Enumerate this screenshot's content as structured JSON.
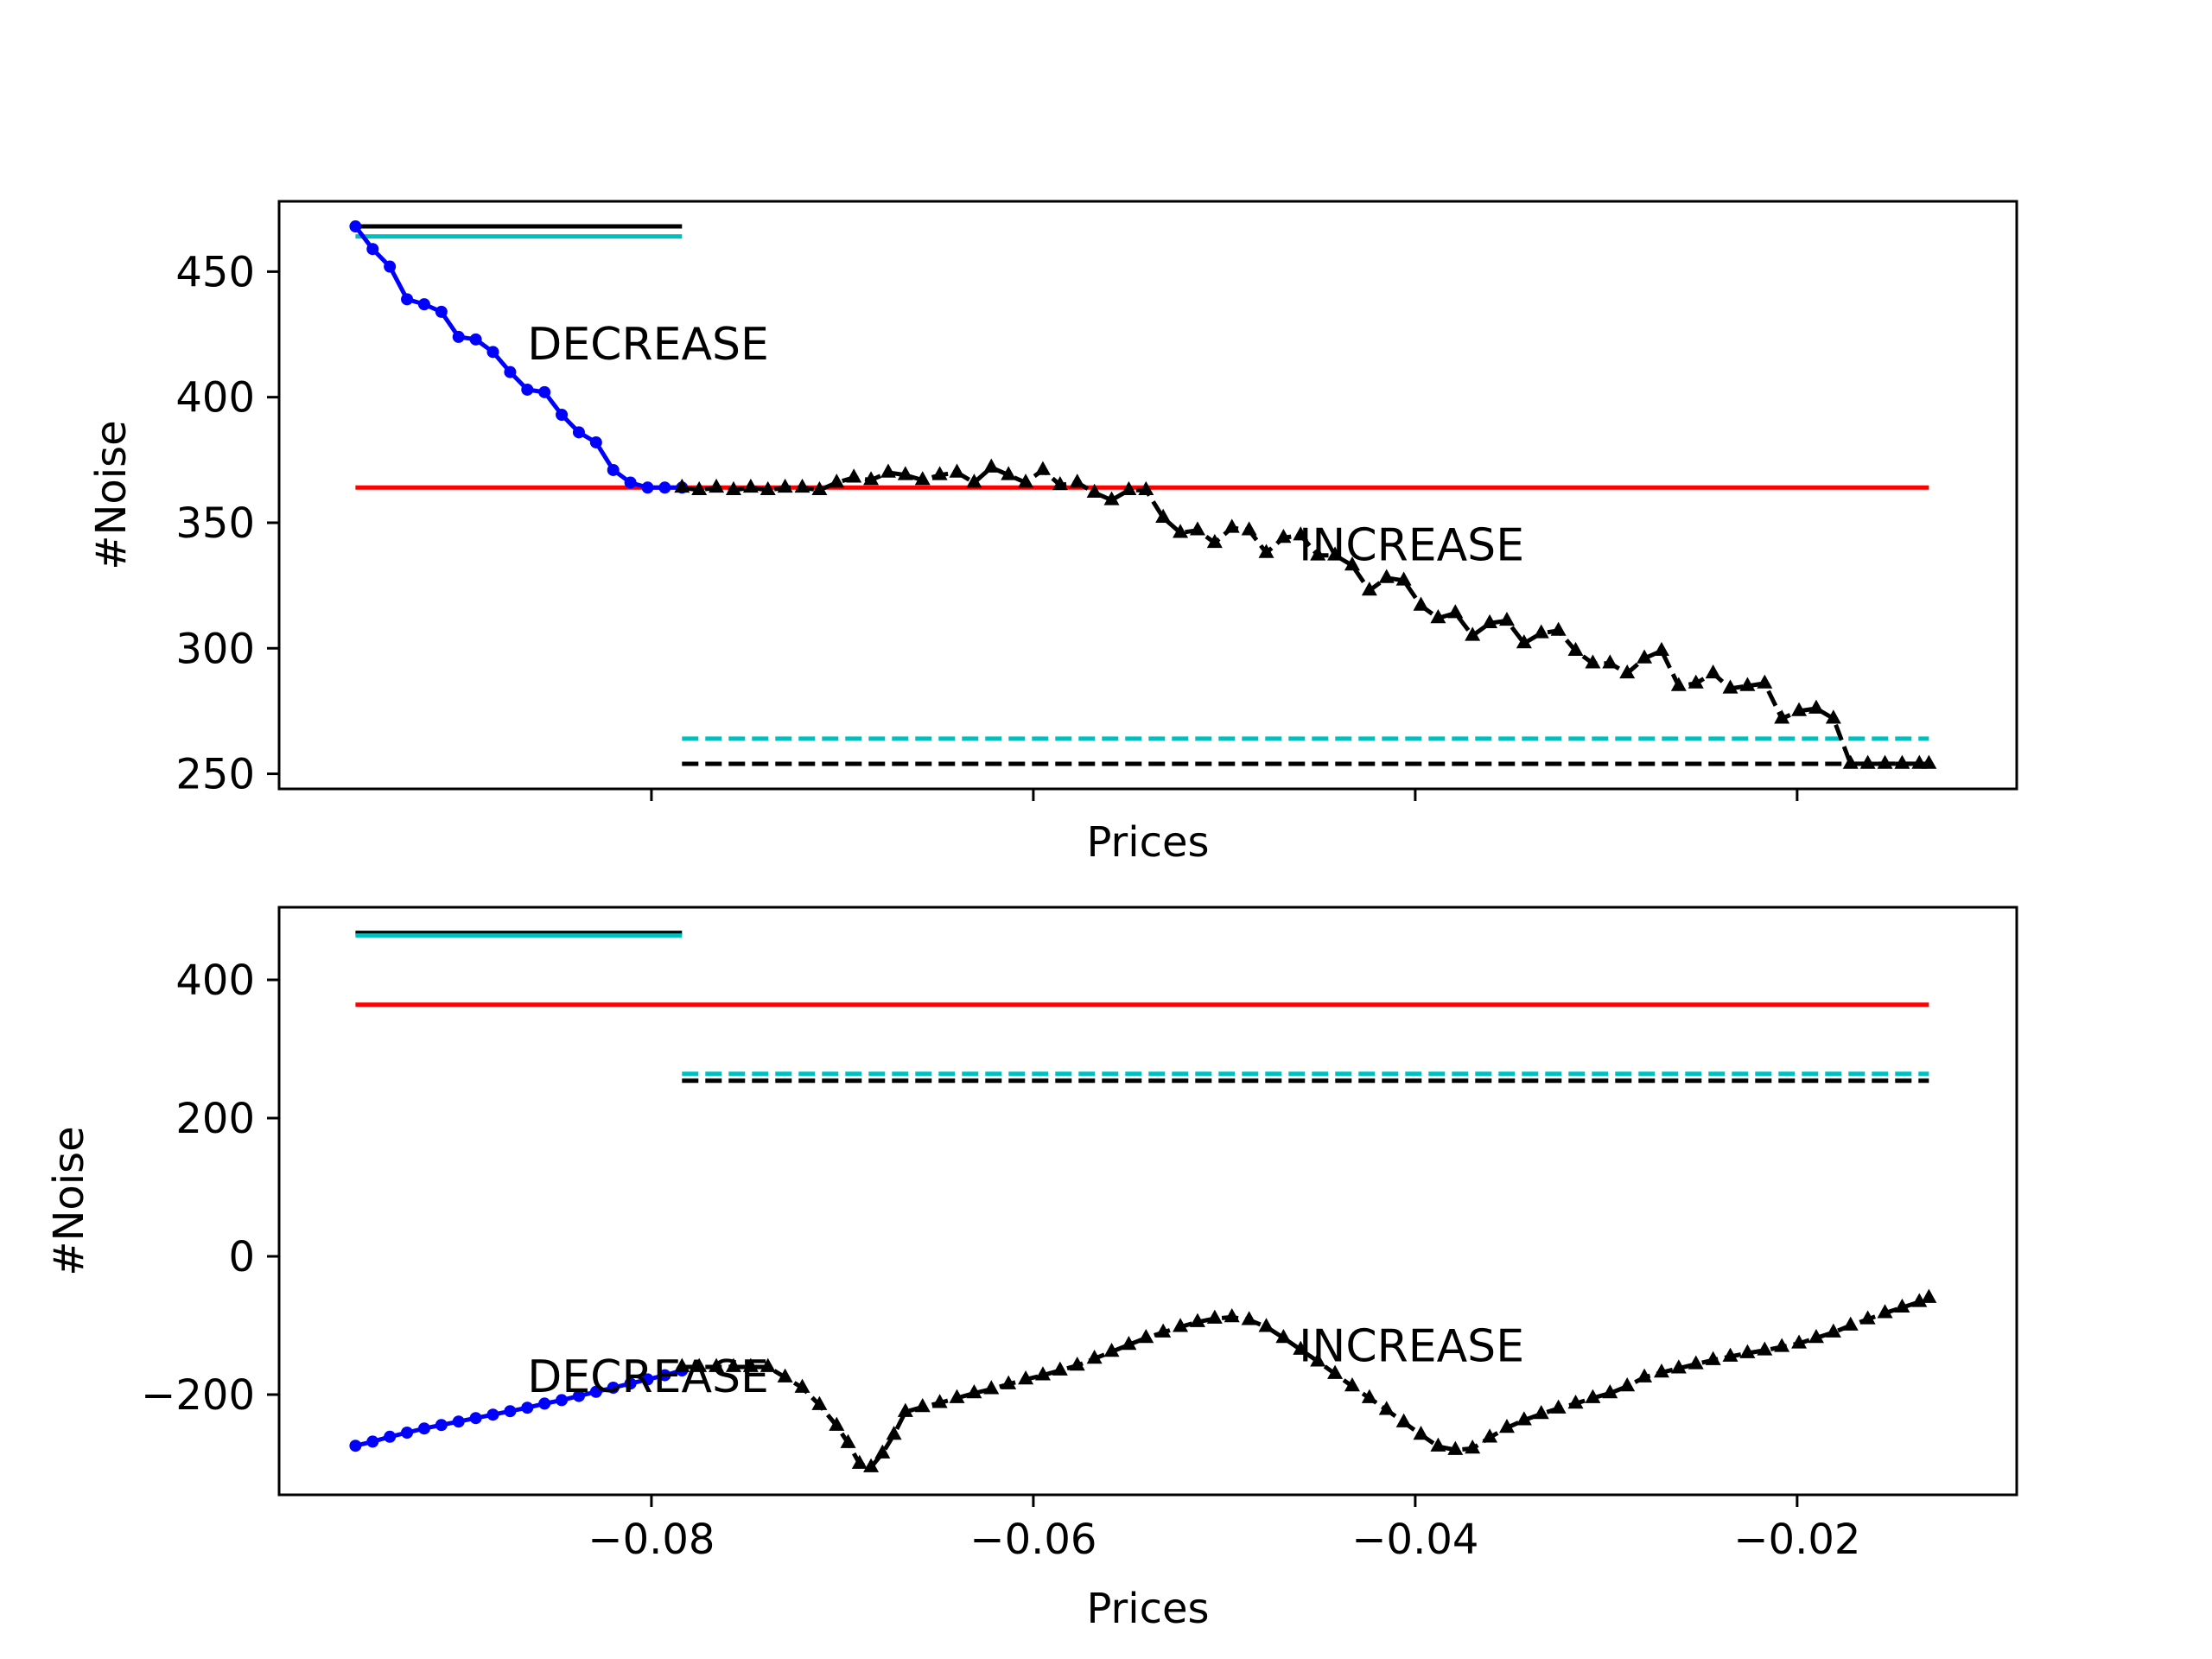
{
  "chart_data": [
    {
      "type": "line",
      "xlabel": "Prices",
      "ylabel": "#Noise",
      "xlim": [
        -0.0995,
        -0.0085
      ],
      "ylim": [
        244,
        478
      ],
      "xticks": [
        -0.08,
        -0.06,
        -0.04,
        -0.02
      ],
      "show_xtick_labels": false,
      "yticks": [
        250,
        300,
        350,
        400,
        450
      ],
      "ytick_labels": [
        "250",
        "300",
        "350",
        "400",
        "450"
      ],
      "grid": false,
      "annotations": [
        {
          "text": "DECREASE",
          "x": -0.0865,
          "y": 415
        },
        {
          "text": "INCREASE",
          "x": -0.0461,
          "y": 335
        }
      ],
      "hlines": [
        {
          "y": 468,
          "x0": -0.0955,
          "x1": -0.0784,
          "color": "#000000",
          "style": "solid"
        },
        {
          "y": 464,
          "x0": -0.0955,
          "x1": -0.0784,
          "color": "#00bfbf",
          "style": "solid"
        },
        {
          "y": 364,
          "x0": -0.0955,
          "x1": -0.0131,
          "color": "#ff0000",
          "style": "solid"
        },
        {
          "y": 264,
          "x0": -0.0784,
          "x1": -0.0131,
          "color": "#00bfbf",
          "style": "dashed"
        },
        {
          "y": 254,
          "x0": -0.0784,
          "x1": -0.0131,
          "color": "#000000",
          "style": "dashed"
        }
      ],
      "series": [
        {
          "color": "#0000ff",
          "marker": "circle",
          "linestyle": "solid",
          "x": [
            -0.0955,
            -0.0946,
            -0.0937,
            -0.0928,
            -0.0919,
            -0.091,
            -0.0901,
            -0.0892,
            -0.0883,
            -0.0874,
            -0.0865,
            -0.0856,
            -0.0847,
            -0.0838,
            -0.0829,
            -0.082,
            -0.0811,
            -0.0802,
            -0.0793,
            -0.0784
          ],
          "y": [
            468,
            459,
            452,
            439,
            437,
            434,
            424,
            423,
            418,
            410,
            403,
            402,
            393,
            386,
            382,
            371,
            366,
            364,
            364,
            364
          ]
        },
        {
          "color": "#000000",
          "marker": "triangle",
          "linestyle": "dashed",
          "x": [
            -0.0784,
            -0.0775,
            -0.0766,
            -0.0757,
            -0.0748,
            -0.0739,
            -0.073,
            -0.0721,
            -0.0712,
            -0.0703,
            -0.0694,
            -0.0685,
            -0.0676,
            -0.0667,
            -0.0658,
            -0.0649,
            -0.064,
            -0.0631,
            -0.0622,
            -0.0613,
            -0.0604,
            -0.0595,
            -0.0586,
            -0.0577,
            -0.0568,
            -0.0559,
            -0.055,
            -0.0541,
            -0.0532,
            -0.0523,
            -0.0514,
            -0.0505,
            -0.0496,
            -0.0487,
            -0.0478,
            -0.0469,
            -0.046,
            -0.0451,
            -0.0442,
            -0.0433,
            -0.0424,
            -0.0415,
            -0.0406,
            -0.0397,
            -0.0388,
            -0.0379,
            -0.037,
            -0.0361,
            -0.0352,
            -0.0343,
            -0.0334,
            -0.0325,
            -0.0316,
            -0.0307,
            -0.0298,
            -0.0289,
            -0.028,
            -0.0271,
            -0.0262,
            -0.0253,
            -0.0244,
            -0.0235,
            -0.0226,
            -0.0217,
            -0.0208,
            -0.0199,
            -0.019,
            -0.0181,
            -0.0172,
            -0.0163,
            -0.0154,
            -0.0145,
            -0.0136,
            -0.0131
          ],
          "y": [
            364,
            363,
            364,
            363,
            364,
            363,
            364,
            364,
            363,
            366,
            368,
            367,
            370,
            369,
            367,
            369,
            370,
            366,
            372,
            369,
            366,
            371,
            365,
            366,
            362,
            359,
            363,
            363,
            352,
            346,
            347,
            342,
            348,
            347,
            338,
            344,
            345,
            337,
            337,
            333,
            323,
            328,
            327,
            317,
            312,
            314,
            305,
            310,
            311,
            302,
            306,
            307,
            299,
            294,
            294,
            290,
            296,
            299,
            285,
            286,
            290,
            284,
            285,
            286,
            272,
            275,
            276,
            272,
            254,
            254,
            254,
            254,
            254,
            254
          ]
        }
      ]
    },
    {
      "type": "line",
      "xlabel": "Prices",
      "ylabel": "#Noise",
      "xlim": [
        -0.0995,
        -0.0085
      ],
      "ylim": [
        -345,
        505
      ],
      "xticks": [
        -0.08,
        -0.06,
        -0.04,
        -0.02
      ],
      "xtick_labels": [
        "−0.08",
        "−0.06",
        "−0.04",
        "−0.02"
      ],
      "yticks": [
        -200,
        0,
        200,
        400
      ],
      "ytick_labels": [
        "−200",
        "0",
        "200",
        "400"
      ],
      "grid": false,
      "annotations": [
        {
          "text": "DECREASE",
          "x": -0.0865,
          "y": -196
        },
        {
          "text": "INCREASE",
          "x": -0.0461,
          "y": -152
        }
      ],
      "hlines": [
        {
          "y": 468,
          "x0": -0.0955,
          "x1": -0.0784,
          "color": "#000000",
          "style": "solid"
        },
        {
          "y": 464,
          "x0": -0.0955,
          "x1": -0.0784,
          "color": "#00bfbf",
          "style": "solid"
        },
        {
          "y": 364,
          "x0": -0.0955,
          "x1": -0.0131,
          "color": "#ff0000",
          "style": "solid"
        },
        {
          "y": 264,
          "x0": -0.0784,
          "x1": -0.0131,
          "color": "#00bfbf",
          "style": "dashed"
        },
        {
          "y": 254,
          "x0": -0.0784,
          "x1": -0.0131,
          "color": "#000000",
          "style": "dashed"
        }
      ],
      "series": [
        {
          "color": "#0000ff",
          "marker": "circle",
          "linestyle": "solid",
          "x": [
            -0.0955,
            -0.0946,
            -0.0937,
            -0.0928,
            -0.0919,
            -0.091,
            -0.0901,
            -0.0892,
            -0.0883,
            -0.0874,
            -0.0865,
            -0.0856,
            -0.0847,
            -0.0838,
            -0.0829,
            -0.082,
            -0.0811,
            -0.0802,
            -0.0793,
            -0.0784
          ],
          "y": [
            -274,
            -268,
            -261,
            -255,
            -249,
            -244,
            -239,
            -234,
            -229,
            -224,
            -219,
            -213,
            -208,
            -202,
            -196,
            -190,
            -184,
            -178,
            -172,
            -165
          ]
        },
        {
          "color": "#000000",
          "marker": "triangle",
          "linestyle": "dashed",
          "x": [
            -0.0784,
            -0.0775,
            -0.0766,
            -0.0757,
            -0.0748,
            -0.0739,
            -0.073,
            -0.0721,
            -0.0712,
            -0.0703,
            -0.0697,
            -0.0691,
            -0.0685,
            -0.0679,
            -0.0673,
            -0.0667,
            -0.0658,
            -0.0649,
            -0.064,
            -0.0631,
            -0.0622,
            -0.0613,
            -0.0604,
            -0.0595,
            -0.0586,
            -0.0577,
            -0.0568,
            -0.0559,
            -0.055,
            -0.0541,
            -0.0532,
            -0.0523,
            -0.0514,
            -0.0505,
            -0.0496,
            -0.0487,
            -0.0478,
            -0.0469,
            -0.046,
            -0.0451,
            -0.0442,
            -0.0433,
            -0.0424,
            -0.0415,
            -0.0406,
            -0.0397,
            -0.0388,
            -0.0379,
            -0.037,
            -0.0361,
            -0.0352,
            -0.0343,
            -0.0334,
            -0.0325,
            -0.0316,
            -0.0307,
            -0.0298,
            -0.0289,
            -0.028,
            -0.0271,
            -0.0262,
            -0.0253,
            -0.0244,
            -0.0235,
            -0.0226,
            -0.0217,
            -0.0208,
            -0.0199,
            -0.019,
            -0.0181,
            -0.0172,
            -0.0163,
            -0.0154,
            -0.0145,
            -0.0136,
            -0.0131
          ],
          "y": [
            -160,
            -160,
            -160,
            -160,
            -160,
            -160,
            -175,
            -190,
            -215,
            -245,
            -270,
            -300,
            -305,
            -285,
            -258,
            -225,
            -218,
            -212,
            -205,
            -198,
            -192,
            -185,
            -178,
            -172,
            -165,
            -158,
            -148,
            -138,
            -128,
            -118,
            -110,
            -102,
            -95,
            -90,
            -88,
            -92,
            -102,
            -118,
            -135,
            -152,
            -170,
            -188,
            -205,
            -222,
            -240,
            -258,
            -275,
            -280,
            -278,
            -262,
            -248,
            -237,
            -228,
            -220,
            -213,
            -205,
            -198,
            -188,
            -175,
            -168,
            -162,
            -156,
            -150,
            -145,
            -140,
            -136,
            -131,
            -126,
            -118,
            -110,
            -100,
            -91,
            -82,
            -74,
            -66,
            -60
          ]
        }
      ]
    }
  ]
}
